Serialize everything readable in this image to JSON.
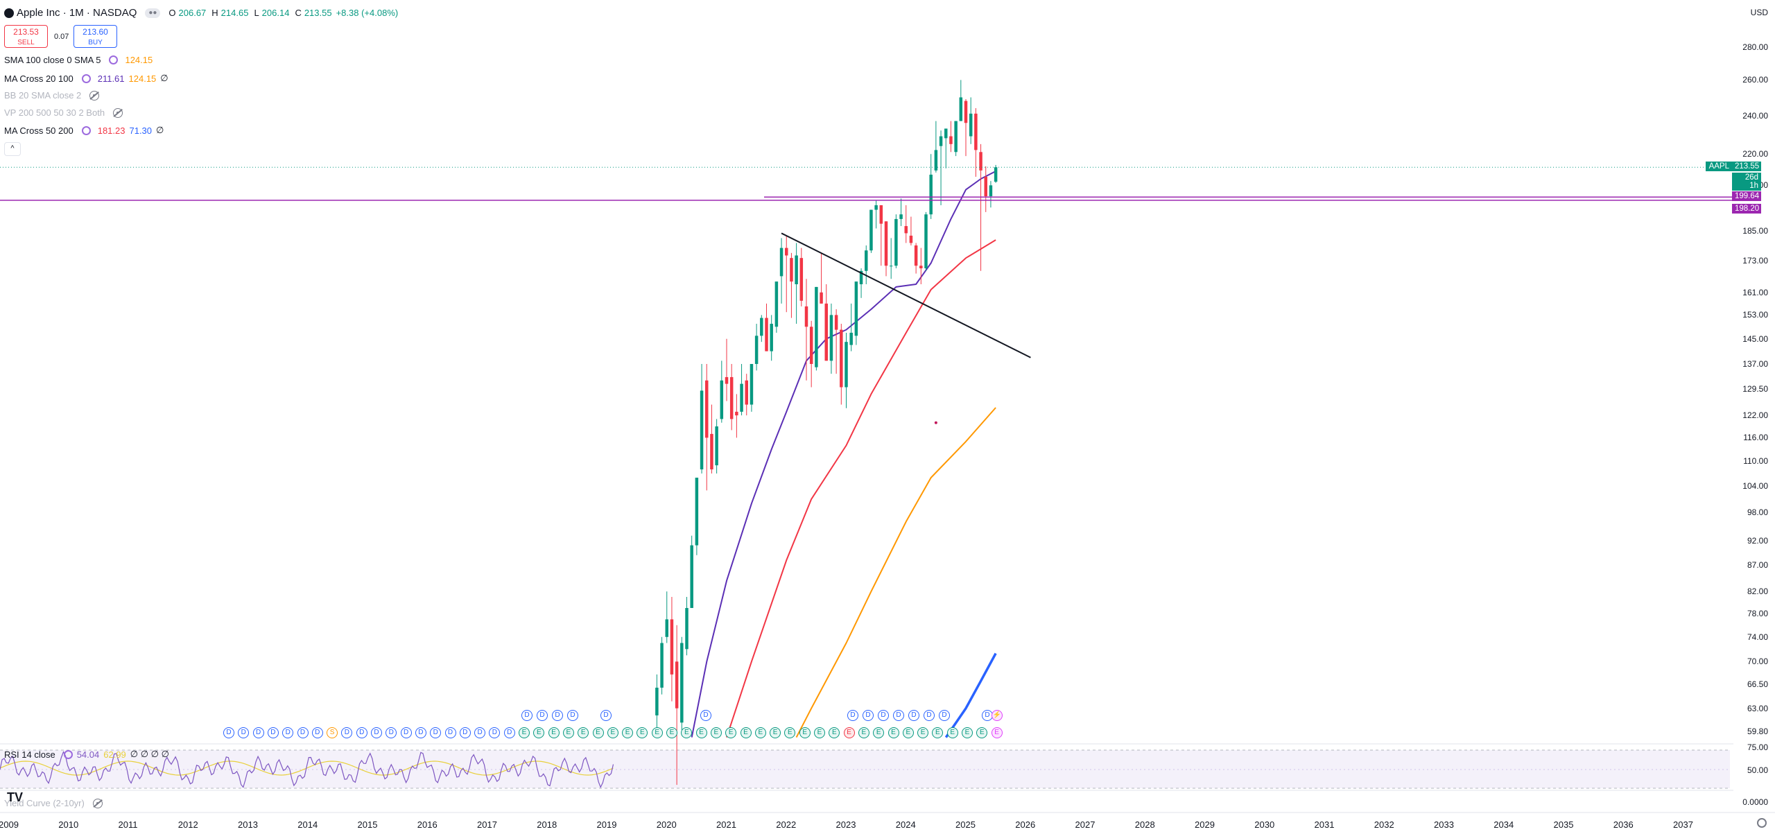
{
  "header": {
    "symbol_title": "Apple Inc · 1M · NASDAQ",
    "open_label": "O",
    "open": "206.67",
    "high_label": "H",
    "high": "214.65",
    "low_label": "L",
    "low": "206.14",
    "close_label": "C",
    "close": "213.55",
    "change": "+8.38 (+4.08%)",
    "currency": "USD"
  },
  "trade": {
    "sell_price": "213.53",
    "sell_label": "SELL",
    "spread": "0.07",
    "buy_price": "213.60",
    "buy_label": "BUY"
  },
  "indicators": [
    {
      "name": "SMA 100 close 0 SMA 5",
      "values": [
        "124.15"
      ],
      "colors": [
        "#ff9800"
      ]
    },
    {
      "name": "MA Cross 20 100",
      "values": [
        "211.61",
        "124.15",
        "∅"
      ],
      "colors": [
        "#5b2fb5",
        "#ff9800",
        "#131722"
      ]
    },
    {
      "name": "BB 20 SMA close 2",
      "values": [],
      "hidden": true
    },
    {
      "name": "VP 200 500 50 30 2 Both",
      "values": [],
      "hidden": true
    },
    {
      "name": "MA Cross 50 200",
      "values": [
        "181.23",
        "71.30",
        "∅"
      ],
      "colors": [
        "#f23645",
        "#2962ff",
        "#131722"
      ]
    }
  ],
  "rsi": {
    "name": "RSI 14 close",
    "value1": "54.04",
    "value2": "62.99",
    "empties": "∅ ∅ ∅ ∅",
    "levels": [
      "75.00",
      "50.00"
    ]
  },
  "yield_curve": {
    "name": "Yield Curve (2-10yr)",
    "value": "0.0000"
  },
  "price_axis": [
    "280.00",
    "260.00",
    "240.00",
    "220.00",
    "205.00",
    "185.00",
    "173.00",
    "161.00",
    "153.00",
    "145.00",
    "137.00",
    "129.50",
    "122.00",
    "116.00",
    "110.00",
    "104.00",
    "98.00",
    "92.00",
    "87.00",
    "82.00",
    "78.00",
    "74.00",
    "70.00",
    "66.50",
    "63.00",
    "59.80"
  ],
  "time_axis": [
    "2009",
    "2010",
    "2011",
    "2012",
    "2013",
    "2014",
    "2015",
    "2016",
    "2017",
    "2018",
    "2019",
    "2020",
    "2021",
    "2022",
    "2023",
    "2024",
    "2025",
    "2026",
    "2027",
    "2028",
    "2029",
    "2030",
    "2031",
    "2032",
    "2033",
    "2034",
    "2035",
    "2036",
    "2037"
  ],
  "price_tags": {
    "ticker": "AAPL",
    "last": "213.55",
    "countdown": "26d 1h",
    "line1": "199.64",
    "line2": "198.20"
  },
  "colors": {
    "up": "#089981",
    "down": "#f23645",
    "ma20": "#5b2fb5",
    "ma50": "#f23645",
    "sma100": "#ff9800",
    "ma200": "#2962ff",
    "hline": "#9c27b0"
  },
  "markers": {
    "dividend_letter": "D",
    "earnings_letter": "E",
    "split_letter": "S"
  },
  "chart_data": {
    "type": "candlestick",
    "title": "Apple Inc · 1M · NASDAQ",
    "log_scale": true,
    "ylim": [
      58,
      290
    ],
    "x_range": [
      "2009",
      "2037"
    ],
    "candles": [
      {
        "d": "2019-11",
        "o": 62,
        "h": 68,
        "l": 59,
        "c": 66
      },
      {
        "d": "2019-12",
        "o": 66,
        "h": 74,
        "l": 65,
        "c": 73
      },
      {
        "d": "2020-01",
        "o": 74,
        "h": 82,
        "l": 73,
        "c": 77
      },
      {
        "d": "2020-02",
        "o": 77,
        "h": 81,
        "l": 64,
        "c": 68
      },
      {
        "d": "2020-03",
        "o": 70,
        "h": 76,
        "l": 53,
        "c": 63
      },
      {
        "d": "2020-04",
        "o": 61,
        "h": 74,
        "l": 60,
        "c": 73
      },
      {
        "d": "2020-05",
        "o": 72,
        "h": 81,
        "l": 71,
        "c": 79
      },
      {
        "d": "2020-06",
        "o": 79,
        "h": 93,
        "l": 79,
        "c": 91
      },
      {
        "d": "2020-07",
        "o": 91,
        "h": 106,
        "l": 89,
        "c": 106
      },
      {
        "d": "2020-08",
        "o": 108,
        "h": 137,
        "l": 107,
        "c": 129
      },
      {
        "d": "2020-09",
        "o": 132,
        "h": 137,
        "l": 103,
        "c": 116
      },
      {
        "d": "2020-10",
        "o": 117,
        "h": 125,
        "l": 107,
        "c": 108
      },
      {
        "d": "2020-11",
        "o": 109,
        "h": 121,
        "l": 107,
        "c": 119
      },
      {
        "d": "2020-12",
        "o": 121,
        "h": 138,
        "l": 120,
        "c": 132
      },
      {
        "d": "2021-01",
        "o": 133,
        "h": 145,
        "l": 126,
        "c": 131
      },
      {
        "d": "2021-02",
        "o": 133,
        "h": 137,
        "l": 118,
        "c": 121
      },
      {
        "d": "2021-03",
        "o": 123,
        "h": 128,
        "l": 116,
        "c": 122
      },
      {
        "d": "2021-04",
        "o": 123,
        "h": 137,
        "l": 122,
        "c": 131
      },
      {
        "d": "2021-05",
        "o": 132,
        "h": 134,
        "l": 122,
        "c": 125
      },
      {
        "d": "2021-06",
        "o": 125,
        "h": 137,
        "l": 123,
        "c": 137
      },
      {
        "d": "2021-07",
        "o": 137,
        "h": 150,
        "l": 135,
        "c": 146
      },
      {
        "d": "2021-08",
        "o": 146,
        "h": 153,
        "l": 144,
        "c": 152
      },
      {
        "d": "2021-09",
        "o": 152,
        "h": 157,
        "l": 141,
        "c": 141
      },
      {
        "d": "2021-10",
        "o": 141,
        "h": 153,
        "l": 138,
        "c": 150
      },
      {
        "d": "2021-11",
        "o": 149,
        "h": 165,
        "l": 147,
        "c": 165
      },
      {
        "d": "2021-12",
        "o": 167,
        "h": 182,
        "l": 157,
        "c": 178
      },
      {
        "d": "2022-01",
        "o": 178,
        "h": 183,
        "l": 154,
        "c": 175
      },
      {
        "d": "2022-02",
        "o": 174,
        "h": 176,
        "l": 152,
        "c": 165
      },
      {
        "d": "2022-03",
        "o": 164,
        "h": 180,
        "l": 150,
        "c": 175
      },
      {
        "d": "2022-04",
        "o": 174,
        "h": 178,
        "l": 156,
        "c": 158
      },
      {
        "d": "2022-05",
        "o": 156,
        "h": 166,
        "l": 132,
        "c": 149
      },
      {
        "d": "2022-06",
        "o": 149,
        "h": 151,
        "l": 130,
        "c": 137
      },
      {
        "d": "2022-07",
        "o": 136,
        "h": 163,
        "l": 135,
        "c": 163
      },
      {
        "d": "2022-08",
        "o": 161,
        "h": 176,
        "l": 157,
        "c": 157
      },
      {
        "d": "2022-09",
        "o": 157,
        "h": 164,
        "l": 138,
        "c": 138
      },
      {
        "d": "2022-10",
        "o": 138,
        "h": 157,
        "l": 134,
        "c": 153
      },
      {
        "d": "2022-11",
        "o": 153,
        "h": 155,
        "l": 134,
        "c": 148
      },
      {
        "d": "2022-12",
        "o": 148,
        "h": 150,
        "l": 125,
        "c": 130
      },
      {
        "d": "2023-01",
        "o": 130,
        "h": 147,
        "l": 124,
        "c": 144
      },
      {
        "d": "2023-02",
        "o": 143,
        "h": 157,
        "l": 141,
        "c": 147
      },
      {
        "d": "2023-03",
        "o": 146,
        "h": 165,
        "l": 143,
        "c": 165
      },
      {
        "d": "2023-04",
        "o": 164,
        "h": 170,
        "l": 159,
        "c": 169
      },
      {
        "d": "2023-05",
        "o": 169,
        "h": 179,
        "l": 164,
        "c": 177
      },
      {
        "d": "2023-06",
        "o": 177,
        "h": 194,
        "l": 176,
        "c": 194
      },
      {
        "d": "2023-07",
        "o": 194,
        "h": 198,
        "l": 186,
        "c": 196
      },
      {
        "d": "2023-08",
        "o": 196,
        "h": 196,
        "l": 171,
        "c": 188
      },
      {
        "d": "2023-09",
        "o": 189,
        "h": 189,
        "l": 167,
        "c": 171
      },
      {
        "d": "2023-10",
        "o": 171,
        "h": 182,
        "l": 166,
        "c": 171
      },
      {
        "d": "2023-11",
        "o": 171,
        "h": 192,
        "l": 170,
        "c": 190
      },
      {
        "d": "2023-12",
        "o": 190,
        "h": 199,
        "l": 187,
        "c": 192
      },
      {
        "d": "2024-01",
        "o": 187,
        "h": 196,
        "l": 180,
        "c": 184
      },
      {
        "d": "2024-02",
        "o": 183,
        "h": 191,
        "l": 179,
        "c": 180
      },
      {
        "d": "2024-03",
        "o": 179,
        "h": 180,
        "l": 168,
        "c": 171
      },
      {
        "d": "2024-04",
        "o": 171,
        "h": 178,
        "l": 164,
        "c": 170
      },
      {
        "d": "2024-05",
        "o": 170,
        "h": 193,
        "l": 169,
        "c": 192
      },
      {
        "d": "2024-06",
        "o": 192,
        "h": 220,
        "l": 190,
        "c": 210
      },
      {
        "d": "2024-07",
        "o": 212,
        "h": 237,
        "l": 211,
        "c": 222
      },
      {
        "d": "2024-08",
        "o": 224,
        "h": 232,
        "l": 196,
        "c": 229
      },
      {
        "d": "2024-09",
        "o": 228,
        "h": 233,
        "l": 213,
        "c": 233
      },
      {
        "d": "2024-10",
        "o": 229,
        "h": 237,
        "l": 221,
        "c": 225
      },
      {
        "d": "2024-11",
        "o": 221,
        "h": 237,
        "l": 219,
        "c": 237
      },
      {
        "d": "2024-12",
        "o": 237,
        "h": 260,
        "l": 237,
        "c": 250
      },
      {
        "d": "2025-01",
        "o": 248,
        "h": 249,
        "l": 219,
        "c": 236
      },
      {
        "d": "2025-02",
        "o": 229,
        "h": 250,
        "l": 225,
        "c": 241
      },
      {
        "d": "2025-03",
        "o": 241,
        "h": 244,
        "l": 209,
        "c": 222
      },
      {
        "d": "2025-04",
        "o": 221,
        "h": 225,
        "l": 169,
        "c": 212
      },
      {
        "d": "2025-05",
        "o": 209,
        "h": 214,
        "l": 193,
        "c": 200
      },
      {
        "d": "2025-06",
        "o": 200,
        "h": 207,
        "l": 195,
        "c": 205
      },
      {
        "d": "2025-07",
        "o": 206.67,
        "h": 214.65,
        "l": 206.14,
        "c": 213.55
      }
    ],
    "ma20": [
      [
        "2020-06",
        59
      ],
      [
        "2020-09",
        70
      ],
      [
        "2021-01",
        84
      ],
      [
        "2021-06",
        100
      ],
      [
        "2021-10",
        113
      ],
      [
        "2022-01",
        123
      ],
      [
        "2022-05",
        138
      ],
      [
        "2022-09",
        145
      ],
      [
        "2023-01",
        148
      ],
      [
        "2023-06",
        155
      ],
      [
        "2023-11",
        163
      ],
      [
        "2024-03",
        164
      ],
      [
        "2024-06",
        172
      ],
      [
        "2024-10",
        190
      ],
      [
        "2025-01",
        203
      ],
      [
        "2025-04",
        208
      ],
      [
        "2025-07",
        211.61
      ]
    ],
    "ma50": [
      [
        "2021-01",
        59
      ],
      [
        "2021-06",
        70
      ],
      [
        "2022-01",
        88
      ],
      [
        "2022-06",
        101
      ],
      [
        "2023-01",
        114
      ],
      [
        "2023-06",
        128
      ],
      [
        "2024-01",
        147
      ],
      [
        "2024-06",
        162
      ],
      [
        "2025-01",
        174
      ],
      [
        "2025-07",
        181.23
      ]
    ],
    "sma100": [
      [
        "2022-03",
        59
      ],
      [
        "2022-06",
        63
      ],
      [
        "2023-01",
        73
      ],
      [
        "2023-06",
        82
      ],
      [
        "2024-01",
        96
      ],
      [
        "2024-06",
        106
      ],
      [
        "2025-01",
        115
      ],
      [
        "2025-07",
        124.15
      ]
    ],
    "ma200": [
      [
        "2024-09",
        59
      ],
      [
        "2025-01",
        63
      ],
      [
        "2025-04",
        67
      ],
      [
        "2025-07",
        71.3
      ]
    ],
    "trendline": [
      [
        "2021-12",
        184
      ],
      [
        "2026-02",
        139
      ]
    ],
    "horizontal_lines": [
      199.64,
      198.2
    ]
  }
}
